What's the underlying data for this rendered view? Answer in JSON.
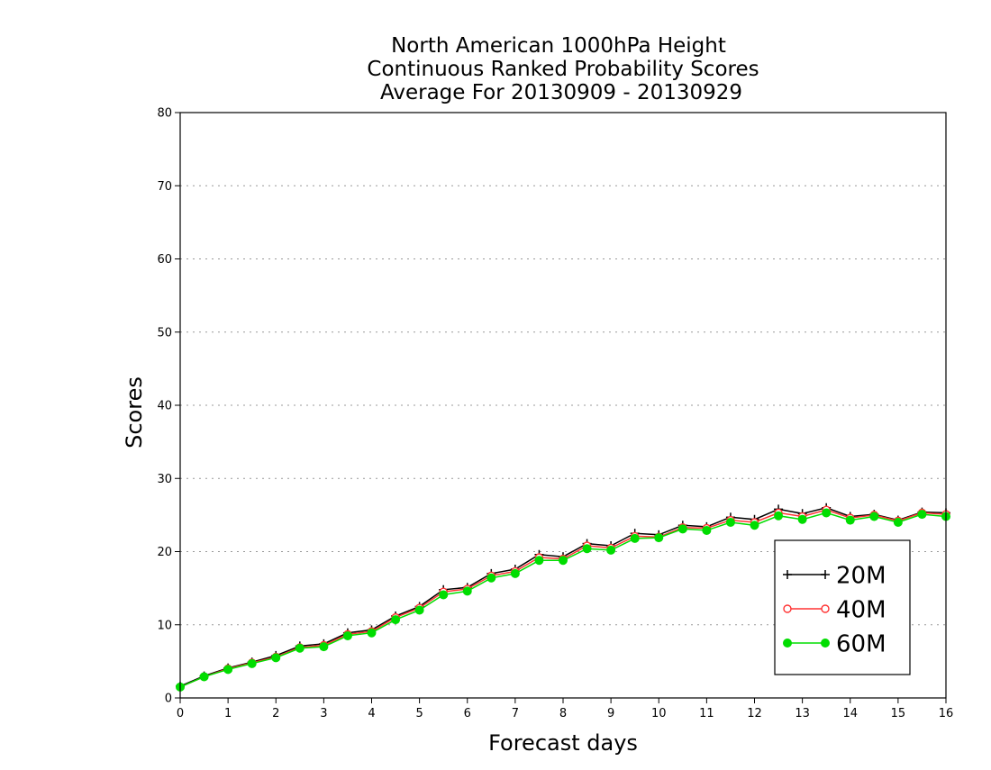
{
  "chart_data": {
    "type": "line",
    "title": [
      "North American 1000hPa Height",
      "Continuous Ranked Probability Scores",
      "Average For 20130909 - 20130929"
    ],
    "xlabel": "Forecast days",
    "ylabel": "Scores",
    "xlim": [
      0,
      16
    ],
    "ylim": [
      0,
      80
    ],
    "xticks": [
      0,
      1,
      2,
      3,
      4,
      5,
      6,
      7,
      8,
      9,
      10,
      11,
      12,
      13,
      14,
      15,
      16
    ],
    "yticks": [
      0,
      10,
      20,
      30,
      40,
      50,
      60,
      70,
      80
    ],
    "grid": "horizontal-dotted",
    "legend_position": "bottom-right",
    "x": [
      0,
      0.5,
      1,
      1.5,
      2,
      2.5,
      3,
      3.5,
      4,
      4.5,
      5,
      5.5,
      6,
      6.5,
      7,
      7.5,
      8,
      8.5,
      9,
      9.5,
      10,
      10.5,
      11,
      11.5,
      12,
      12.5,
      13,
      13.5,
      14,
      14.5,
      15,
      15.5,
      16
    ],
    "series": [
      {
        "name": "20M",
        "color": "#000000",
        "marker": "plus",
        "values": [
          1.6,
          3.0,
          4.1,
          4.9,
          5.8,
          7.1,
          7.4,
          8.9,
          9.3,
          11.2,
          12.5,
          14.8,
          15.1,
          17.0,
          17.6,
          19.6,
          19.3,
          21.1,
          20.8,
          22.5,
          22.3,
          23.6,
          23.4,
          24.7,
          24.4,
          25.8,
          25.2,
          26.0,
          24.8,
          25.1,
          24.3,
          25.4,
          25.3
        ]
      },
      {
        "name": "40M",
        "color": "#ff3333",
        "marker": "open-circle",
        "values": [
          1.5,
          2.9,
          4.0,
          4.8,
          5.6,
          6.9,
          7.2,
          8.7,
          9.1,
          11.0,
          12.3,
          14.5,
          14.9,
          16.7,
          17.3,
          19.2,
          19.0,
          20.8,
          20.5,
          22.1,
          22.0,
          23.3,
          23.2,
          24.3,
          24.0,
          25.3,
          24.8,
          25.7,
          24.6,
          25.0,
          24.2,
          25.3,
          25.1
        ]
      },
      {
        "name": "60M",
        "color": "#00dd00",
        "marker": "filled-circle",
        "values": [
          1.5,
          2.9,
          3.9,
          4.7,
          5.5,
          6.8,
          7.0,
          8.5,
          8.9,
          10.7,
          12.0,
          14.1,
          14.6,
          16.4,
          17.0,
          18.8,
          18.8,
          20.4,
          20.2,
          21.8,
          21.9,
          23.1,
          22.9,
          24.0,
          23.6,
          24.9,
          24.4,
          25.3,
          24.3,
          24.8,
          24.0,
          25.1,
          24.8
        ]
      }
    ]
  }
}
